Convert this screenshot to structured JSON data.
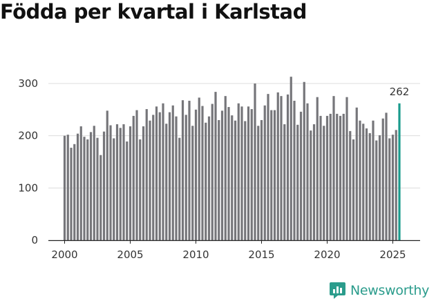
{
  "chart_data": {
    "type": "bar",
    "title": "Födda per kvartal i Karlstad",
    "xlabel": "",
    "ylabel": "",
    "ylim": [
      0,
      300
    ],
    "yticks": [
      0,
      100,
      200,
      300
    ],
    "xticks": [
      "2000",
      "2005",
      "2010",
      "2015",
      "2020",
      "2025"
    ],
    "x_start": "2000 Q1",
    "highlight_label": "262",
    "bar_color": "#76767a",
    "highlight_color": "#1a9b8d",
    "values": [
      200,
      202,
      177,
      184,
      204,
      218,
      198,
      193,
      207,
      219,
      196,
      163,
      208,
      248,
      220,
      195,
      222,
      215,
      222,
      189,
      218,
      238,
      249,
      193,
      218,
      251,
      229,
      240,
      256,
      245,
      262,
      223,
      245,
      258,
      237,
      196,
      268,
      240,
      267,
      219,
      250,
      273,
      257,
      225,
      237,
      261,
      284,
      230,
      248,
      276,
      255,
      239,
      229,
      262,
      256,
      228,
      256,
      251,
      300,
      219,
      230,
      258,
      280,
      249,
      249,
      283,
      276,
      222,
      279,
      313,
      267,
      221,
      246,
      303,
      262,
      210,
      222,
      274,
      238,
      219,
      238,
      242,
      276,
      242,
      238,
      242,
      274,
      209,
      193,
      254,
      229,
      223,
      214,
      205,
      229,
      191,
      201,
      233,
      244,
      195,
      202,
      211,
      262
    ]
  },
  "brand": {
    "name": "Newsworthy",
    "icon": "newsworthy-logo-icon"
  }
}
